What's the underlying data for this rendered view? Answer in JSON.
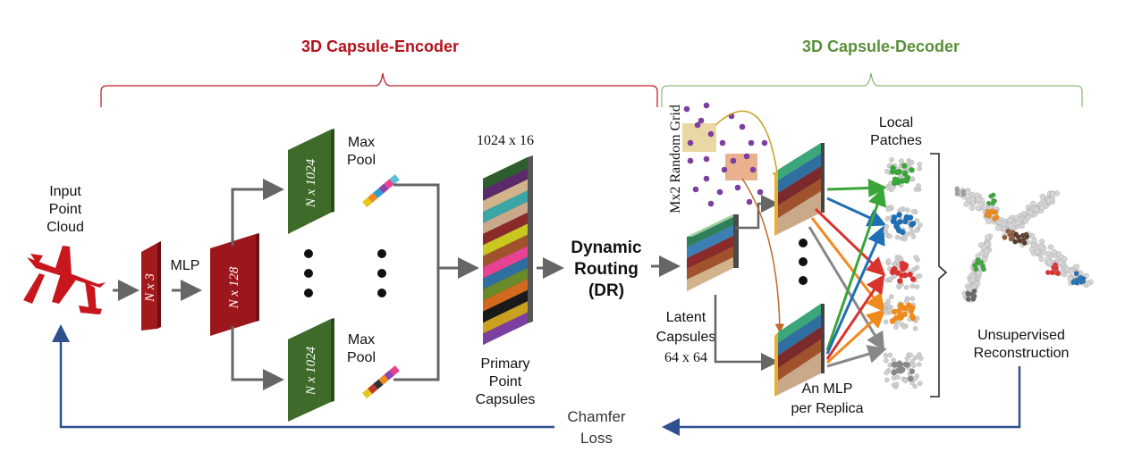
{
  "titles": {
    "encoder": "3D Capsule-Encoder",
    "decoder": "3D Capsule-Decoder"
  },
  "labels": {
    "input_line1": "Input",
    "input_line2": "Point",
    "input_line3": "Cloud",
    "nx3": "N x 3",
    "mlp": "MLP",
    "nx128": "N x 128",
    "nx1024_top": "N x 1024",
    "nx1024_bottom": "N x 1024",
    "maxpool_top_1": "Max",
    "maxpool_top_2": "Pool",
    "maxpool_bottom_1": "Max",
    "maxpool_bottom_2": "Pool",
    "dim_1024x16": "1024 x 16",
    "primary_1": "Primary",
    "primary_2": "Point",
    "primary_3": "Capsules",
    "dr_1": "Dynamic",
    "dr_2": "Routing",
    "dr_3": "(DR)",
    "latent_1": "Latent",
    "latent_2": "Capsules",
    "dim_64x64": "64 x 64",
    "random_grid": "Mx2 Random Grid",
    "local_1": "Local",
    "local_2": "Patches",
    "mlp_replica_1": "An MLP",
    "mlp_replica_2": "per Replica",
    "recon_1": "Unsupervised",
    "recon_2": "Reconstruction",
    "chamfer_1": "Chamfer",
    "chamfer_2": "Loss"
  },
  "colors": {
    "encoder_red": "#b5121b",
    "decoder_green": "#5a8f3a",
    "dark_red_block": "#8b1518",
    "dark_green_block": "#3f6b2a",
    "loss_blue": "#2f4f8f",
    "arrow_gray": "#666666",
    "grid_purple": "#7b3fa0"
  }
}
